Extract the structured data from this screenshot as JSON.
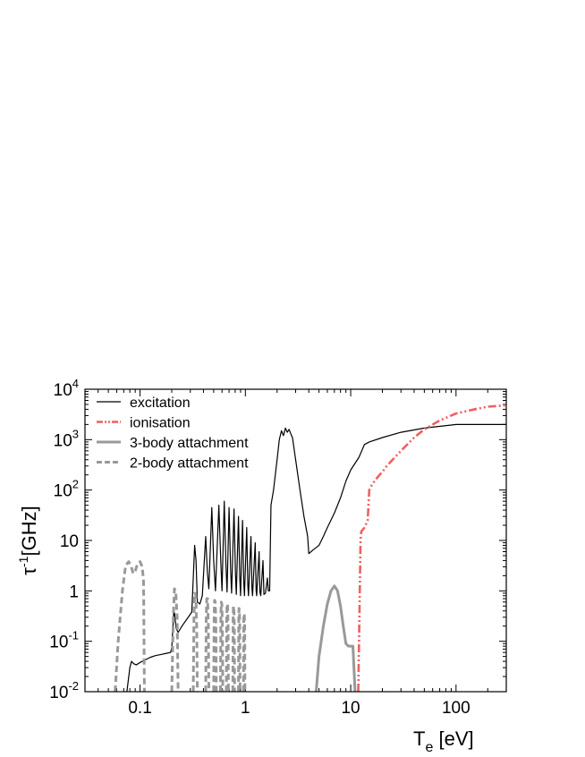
{
  "chart_data": {
    "type": "line",
    "title": "",
    "xlabel": {
      "main": "T",
      "sub": "e",
      "unit": " [eV]"
    },
    "ylabel": {
      "main": "τ",
      "sup": "-1",
      "unit": "[GHz]"
    },
    "xscale": "log",
    "yscale": "log",
    "xlim": [
      0.03,
      300
    ],
    "ylim": [
      0.01,
      10000
    ],
    "grid": false,
    "legend_position": "top-left",
    "x_ticks": [
      {
        "value": 0.1,
        "label": "0.1"
      },
      {
        "value": 1,
        "label": "1"
      },
      {
        "value": 10,
        "label": "10"
      },
      {
        "value": 100,
        "label": "100"
      }
    ],
    "y_ticks": [
      {
        "value": 0.01,
        "base": "10",
        "exp": "-2"
      },
      {
        "value": 0.1,
        "base": "10",
        "exp": "-1"
      },
      {
        "value": 1,
        "base": "1",
        "exp": ""
      },
      {
        "value": 10,
        "base": "10",
        "exp": ""
      },
      {
        "value": 100,
        "base": "10",
        "exp": "2"
      },
      {
        "value": 1000,
        "base": "10",
        "exp": "3"
      },
      {
        "value": 10000,
        "base": "10",
        "exp": "4"
      }
    ],
    "series": [
      {
        "name": "excitation",
        "color": "#000000",
        "style": "solid",
        "width": 1.2,
        "points": [
          [
            0.075,
            0.01
          ],
          [
            0.08,
            0.03
          ],
          [
            0.083,
            0.04
          ],
          [
            0.087,
            0.036
          ],
          [
            0.092,
            0.034
          ],
          [
            0.1,
            0.038
          ],
          [
            0.11,
            0.042
          ],
          [
            0.125,
            0.048
          ],
          [
            0.14,
            0.052
          ],
          [
            0.16,
            0.055
          ],
          [
            0.18,
            0.058
          ],
          [
            0.195,
            0.06
          ],
          [
            0.2,
            0.075
          ],
          [
            0.21,
            0.45
          ],
          [
            0.22,
            0.18
          ],
          [
            0.23,
            0.15
          ],
          [
            0.25,
            0.2
          ],
          [
            0.28,
            0.28
          ],
          [
            0.31,
            0.38
          ],
          [
            0.33,
            8
          ],
          [
            0.34,
            4
          ],
          [
            0.35,
            0.6
          ],
          [
            0.37,
            0.55
          ],
          [
            0.39,
            0.8
          ],
          [
            0.42,
            12
          ],
          [
            0.435,
            2.5
          ],
          [
            0.45,
            1.1
          ],
          [
            0.48,
            45
          ],
          [
            0.5,
            4
          ],
          [
            0.52,
            1.0
          ],
          [
            0.56,
            50
          ],
          [
            0.585,
            3.5
          ],
          [
            0.6,
            1.0
          ],
          [
            0.63,
            60
          ],
          [
            0.655,
            3
          ],
          [
            0.67,
            0.95
          ],
          [
            0.7,
            45
          ],
          [
            0.725,
            2.5
          ],
          [
            0.74,
            0.9
          ],
          [
            0.78,
            42
          ],
          [
            0.805,
            2.2
          ],
          [
            0.82,
            0.85
          ],
          [
            0.86,
            30
          ],
          [
            0.885,
            1.8
          ],
          [
            0.9,
            0.8
          ],
          [
            0.94,
            25
          ],
          [
            0.965,
            1.5
          ],
          [
            0.98,
            0.8
          ],
          [
            1.03,
            18
          ],
          [
            1.055,
            1.3
          ],
          [
            1.07,
            0.8
          ],
          [
            1.13,
            12
          ],
          [
            1.155,
            1.1
          ],
          [
            1.17,
            0.8
          ],
          [
            1.24,
            9
          ],
          [
            1.265,
            1.0
          ],
          [
            1.28,
            0.8
          ],
          [
            1.35,
            6
          ],
          [
            1.375,
            0.95
          ],
          [
            1.4,
            0.8
          ],
          [
            1.47,
            4
          ],
          [
            1.5,
            0.85
          ],
          [
            1.55,
            0.9
          ],
          [
            1.62,
            1.8
          ],
          [
            1.65,
            1.0
          ],
          [
            1.7,
            1.0
          ],
          [
            1.75,
            50
          ],
          [
            1.85,
            100
          ],
          [
            2.0,
            400
          ],
          [
            2.1,
            1000
          ],
          [
            2.2,
            1500
          ],
          [
            2.3,
            1200
          ],
          [
            2.4,
            1700
          ],
          [
            2.5,
            1400
          ],
          [
            2.6,
            1600
          ],
          [
            2.7,
            1300
          ],
          [
            2.8,
            1100
          ],
          [
            3.0,
            400
          ],
          [
            3.3,
            100
          ],
          [
            3.6,
            30
          ],
          [
            3.9,
            12
          ],
          [
            4.0,
            5.5
          ],
          [
            4.4,
            6.5
          ],
          [
            5.0,
            8
          ],
          [
            5.5,
            12
          ],
          [
            6.0,
            18
          ],
          [
            7.0,
            35
          ],
          [
            8.0,
            70
          ],
          [
            9.0,
            150
          ],
          [
            10.0,
            250
          ],
          [
            12.0,
            450
          ],
          [
            13.5,
            800
          ],
          [
            15,
            900
          ],
          [
            20,
            1100
          ],
          [
            30,
            1400
          ],
          [
            50,
            1700
          ],
          [
            100,
            2000
          ],
          [
            300,
            2000
          ]
        ]
      },
      {
        "name": "ionisation",
        "color": "#f06060",
        "style": "dashdotdot",
        "width": 2.6,
        "points": [
          [
            11.8,
            0.01
          ],
          [
            12.0,
            0.1
          ],
          [
            12.2,
            1
          ],
          [
            12.4,
            10
          ],
          [
            12.6,
            15
          ],
          [
            13.5,
            18
          ],
          [
            14.5,
            25
          ],
          [
            15.0,
            100
          ],
          [
            16,
            130
          ],
          [
            18,
            180
          ],
          [
            20,
            230
          ],
          [
            22,
            300
          ],
          [
            25,
            400
          ],
          [
            30,
            600
          ],
          [
            40,
            1100
          ],
          [
            50,
            1600
          ],
          [
            70,
            2400
          ],
          [
            100,
            3300
          ],
          [
            150,
            4000
          ],
          [
            200,
            4500
          ],
          [
            300,
            4800
          ]
        ]
      },
      {
        "name": "3-body attachment",
        "color": "#999999",
        "style": "solid",
        "width": 3.0,
        "points": [
          [
            4.7,
            0.01
          ],
          [
            5.0,
            0.05
          ],
          [
            5.5,
            0.2
          ],
          [
            6.0,
            0.55
          ],
          [
            6.5,
            1.0
          ],
          [
            7.0,
            1.25
          ],
          [
            7.5,
            1.0
          ],
          [
            8.0,
            0.5
          ],
          [
            8.5,
            0.2
          ],
          [
            9.0,
            0.09
          ],
          [
            9.5,
            0.08
          ],
          [
            10.5,
            0.08
          ],
          [
            11.0,
            0.01
          ]
        ]
      },
      {
        "name": "2-body attachment",
        "color": "#999999",
        "style": "dashed",
        "width": 3.0,
        "points": [
          [
            0.058,
            0.01
          ],
          [
            0.062,
            0.1
          ],
          [
            0.068,
            1
          ],
          [
            0.073,
            3.2
          ],
          [
            0.078,
            3.8
          ],
          [
            0.082,
            3.2
          ],
          [
            0.086,
            2.2
          ],
          [
            0.09,
            2.5
          ],
          [
            0.095,
            3.5
          ],
          [
            0.1,
            3.8
          ],
          [
            0.105,
            3.0
          ],
          [
            0.108,
            1.5
          ],
          [
            0.11,
            0.01
          ],
          [
            0.112,
            null
          ],
          [
            0.2,
            0.01
          ],
          [
            0.207,
            0.3
          ],
          [
            0.212,
            1.1
          ],
          [
            0.218,
            1.0
          ],
          [
            0.225,
            0.3
          ],
          [
            0.23,
            0.01
          ],
          [
            0.232,
            null
          ],
          [
            0.32,
            0.01
          ],
          [
            0.325,
            0.3
          ],
          [
            0.33,
            0.9
          ],
          [
            0.338,
            0.85
          ],
          [
            0.345,
            0.2
          ],
          [
            0.35,
            0.01
          ],
          [
            0.352,
            null
          ],
          [
            0.42,
            0.01
          ],
          [
            0.425,
            0.3
          ],
          [
            0.43,
            0.7
          ],
          [
            0.438,
            0.7
          ],
          [
            0.445,
            0.2
          ],
          [
            0.45,
            0.01
          ],
          [
            0.452,
            null
          ],
          [
            0.5,
            0.01
          ],
          [
            0.505,
            0.3
          ],
          [
            0.51,
            0.65
          ],
          [
            0.518,
            0.6
          ],
          [
            0.525,
            0.2
          ],
          [
            0.53,
            0.01
          ],
          [
            0.532,
            null
          ],
          [
            0.58,
            0.01
          ],
          [
            0.585,
            0.3
          ],
          [
            0.59,
            0.6
          ],
          [
            0.598,
            0.55
          ],
          [
            0.605,
            0.2
          ],
          [
            0.61,
            0.01
          ],
          [
            0.612,
            null
          ],
          [
            0.66,
            0.01
          ],
          [
            0.665,
            0.3
          ],
          [
            0.67,
            0.55
          ],
          [
            0.678,
            0.5
          ],
          [
            0.685,
            0.2
          ],
          [
            0.69,
            0.01
          ],
          [
            0.692,
            null
          ],
          [
            0.76,
            0.01
          ],
          [
            0.765,
            0.3
          ],
          [
            0.77,
            0.5
          ],
          [
            0.778,
            0.45
          ],
          [
            0.785,
            0.2
          ],
          [
            0.79,
            0.01
          ],
          [
            0.792,
            null
          ],
          [
            0.86,
            0.01
          ],
          [
            0.865,
            0.3
          ],
          [
            0.87,
            0.45
          ],
          [
            0.878,
            0.4
          ],
          [
            0.885,
            0.2
          ],
          [
            0.89,
            0.01
          ],
          [
            0.892,
            null
          ],
          [
            0.96,
            0.01
          ],
          [
            0.965,
            0.3
          ],
          [
            0.97,
            0.35
          ],
          [
            0.978,
            0.35
          ],
          [
            0.985,
            0.2
          ],
          [
            0.99,
            0.01
          ]
        ]
      }
    ]
  }
}
